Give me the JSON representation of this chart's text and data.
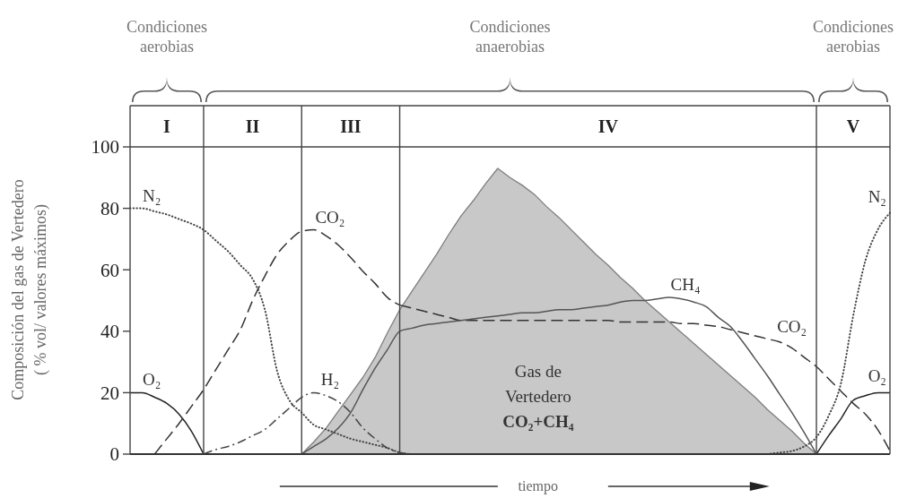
{
  "chart_data": {
    "type": "line",
    "xlabel": "tiempo",
    "ylabel": "Composición del gas de Vertedero\n( % vol/ valores máximos)",
    "annotations": [
      "Condiciones aerobias",
      "Condiciones anaerobias",
      "Condiciones aerobias"
    ],
    "categories": [
      null,
      null,
      null,
      "I",
      null,
      null,
      null,
      null,
      null,
      null,
      "II",
      null,
      null,
      null,
      null,
      null,
      null,
      null,
      "III",
      null,
      null,
      null,
      null,
      null,
      null,
      null,
      null,
      null,
      null,
      null,
      null,
      null,
      null,
      null,
      null,
      null,
      null,
      null,
      null,
      "IV",
      null,
      null,
      null,
      null,
      null,
      null,
      null,
      null,
      null,
      null,
      null,
      null,
      null,
      null,
      null,
      null,
      null,
      null,
      null,
      "V",
      null,
      null,
      null
    ],
    "ylim": [
      0,
      100
    ],
    "yticks": [
      0,
      20,
      40,
      60,
      80,
      100
    ],
    "series": [
      {
        "type": "area",
        "name": "Gas de Vertedero CO₂+CH₄",
        "color": "#c8c8c8",
        "values": [
          null,
          null,
          null,
          null,
          null,
          null,
          null,
          null,
          null,
          null,
          null,
          null,
          null,
          null,
          0,
          4,
          8.5,
          14,
          19.5,
          25,
          31.5,
          39.5,
          47,
          53,
          59,
          65,
          71.5,
          77.5,
          82.5,
          88,
          93,
          90,
          87.5,
          84.5,
          80.5,
          77,
          73,
          69,
          65,
          61.5,
          57.5,
          54,
          50,
          46.5,
          43,
          39.5,
          36,
          32.5,
          29,
          25.5,
          22,
          18.5,
          14.5,
          11,
          7.5,
          3.5,
          0,
          null,
          null,
          null,
          null,
          null,
          null
        ]
      },
      {
        "type": "line",
        "name": "N₂",
        "color": "#444444",
        "line_style": "dotted",
        "values": [
          80,
          80,
          79,
          78,
          76.5,
          75,
          73,
          69.5,
          66,
          61.5,
          57,
          47,
          27,
          17.5,
          13.5,
          9.5,
          8,
          6.5,
          5,
          4,
          3,
          2,
          0.5,
          0,
          null,
          null,
          null,
          null,
          null,
          null,
          null,
          null,
          null,
          null,
          null,
          null,
          null,
          null,
          null,
          null,
          null,
          null,
          null,
          null,
          null,
          null,
          null,
          null,
          null,
          null,
          null,
          null,
          0,
          0.5,
          1,
          2.5,
          5.5,
          12.5,
          23,
          45,
          63,
          73,
          78.5
        ]
      },
      {
        "type": "line",
        "name": "O₂",
        "color": "#222222",
        "line_style": "solid",
        "values": [
          20,
          20,
          18.5,
          16.5,
          13,
          7.5,
          0,
          null,
          null,
          null,
          null,
          null,
          null,
          null,
          null,
          null,
          null,
          null,
          null,
          null,
          null,
          null,
          null,
          null,
          null,
          null,
          null,
          null,
          null,
          null,
          null,
          null,
          null,
          null,
          null,
          null,
          null,
          null,
          null,
          null,
          null,
          null,
          null,
          null,
          null,
          null,
          null,
          null,
          null,
          null,
          null,
          null,
          null,
          null,
          null,
          null,
          0,
          6,
          11.5,
          17.5,
          19,
          20,
          20
        ]
      },
      {
        "type": "line",
        "name": "CO₂",
        "color": "#333333",
        "line_style": "dashed",
        "values": [
          null,
          null,
          0,
          5,
          10,
          15.5,
          21,
          27.5,
          34,
          40.5,
          50,
          58,
          65,
          69.5,
          72.5,
          73,
          71,
          68,
          64,
          59.5,
          55.5,
          51,
          48.5,
          null,
          null,
          null,
          null,
          null,
          null,
          null,
          null,
          null,
          null,
          null,
          null,
          null,
          null,
          null,
          null,
          null,
          null,
          null,
          null,
          null,
          null,
          null,
          null,
          null,
          null,
          null,
          null,
          null,
          null,
          null,
          null,
          null,
          null,
          null,
          null,
          null,
          null,
          null,
          null
        ]
      },
      {
        "type": "line",
        "name": "CO₂",
        "color": "#333333",
        "line_style": "dashed",
        "values": [
          null,
          null,
          null,
          null,
          null,
          null,
          null,
          null,
          null,
          null,
          null,
          null,
          null,
          null,
          null,
          null,
          null,
          null,
          null,
          null,
          null,
          null,
          48.5,
          47.5,
          46.5,
          45.5,
          44.5,
          43.5,
          43.5,
          43.5,
          43.5,
          43.5,
          43.5,
          43.5,
          43.5,
          43.5,
          43.5,
          43.5,
          43.5,
          43.5,
          43,
          43,
          43,
          43,
          43,
          42.5,
          42.5,
          42,
          41.5,
          40.5,
          39.5,
          38.5,
          37.5,
          36.5,
          34.5,
          31.5,
          28.5,
          24.5,
          20.5,
          16.5,
          13,
          8,
          1
        ]
      },
      {
        "type": "line",
        "name": "H₂",
        "color": "#444444",
        "line_style": "dashdot",
        "values": [
          null,
          null,
          null,
          null,
          null,
          null,
          0,
          1.5,
          2.5,
          4,
          6,
          8,
          11.5,
          15,
          18.5,
          20,
          19,
          17,
          13.5,
          8.5,
          5,
          2,
          0.5,
          0,
          null,
          null,
          null,
          null,
          null,
          null,
          null,
          null,
          null,
          null,
          null,
          null,
          null,
          null,
          null,
          null,
          null,
          null,
          null,
          null,
          null,
          null,
          null,
          null,
          null,
          null,
          null,
          null,
          null,
          null,
          null,
          null,
          null,
          null,
          null,
          null,
          null,
          null,
          null
        ]
      },
      {
        "type": "line",
        "name": "CH₄",
        "color": "#555555",
        "line_style": "solid",
        "values": [
          null,
          null,
          null,
          null,
          null,
          null,
          null,
          null,
          null,
          null,
          null,
          null,
          null,
          null,
          0,
          2.5,
          5,
          8.5,
          13.5,
          21,
          28,
          34,
          40,
          41,
          42,
          42.5,
          43,
          43.5,
          44,
          44.5,
          45,
          45.5,
          46,
          46,
          46.5,
          47,
          47,
          47.5,
          48,
          48.5,
          49.5,
          50,
          50,
          50.5,
          51,
          50.5,
          49.5,
          48,
          44.5,
          41.5,
          36.5,
          31,
          25.5,
          19.5,
          13.5,
          7,
          0,
          null,
          null,
          null,
          null,
          null,
          null
        ]
      }
    ]
  }
}
